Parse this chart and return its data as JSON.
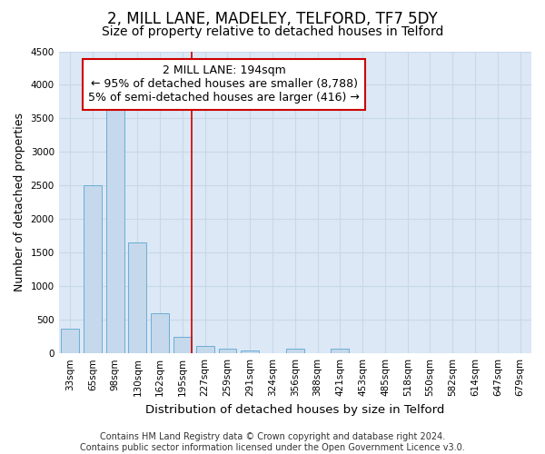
{
  "title": "2, MILL LANE, MADELEY, TELFORD, TF7 5DY",
  "subtitle": "Size of property relative to detached houses in Telford",
  "xlabel": "Distribution of detached houses by size in Telford",
  "ylabel": "Number of detached properties",
  "categories": [
    "33sqm",
    "65sqm",
    "98sqm",
    "130sqm",
    "162sqm",
    "195sqm",
    "227sqm",
    "259sqm",
    "291sqm",
    "324sqm",
    "356sqm",
    "388sqm",
    "421sqm",
    "453sqm",
    "485sqm",
    "518sqm",
    "550sqm",
    "582sqm",
    "614sqm",
    "647sqm",
    "679sqm"
  ],
  "values": [
    370,
    2500,
    3750,
    1650,
    600,
    240,
    110,
    65,
    45,
    0,
    65,
    0,
    65,
    0,
    0,
    0,
    0,
    0,
    0,
    0,
    0
  ],
  "bar_color": "#c5d8ec",
  "bar_edge_color": "#6aaed6",
  "ylim": [
    0,
    4500
  ],
  "yticks": [
    0,
    500,
    1000,
    1500,
    2000,
    2500,
    3000,
    3500,
    4000,
    4500
  ],
  "annotation_line1": "2 MILL LANE: 194sqm",
  "annotation_line2": "← 95% of detached houses are smaller (8,788)",
  "annotation_line3": "5% of semi-detached houses are larger (416) →",
  "annotation_box_color": "#ffffff",
  "annotation_box_edge": "#cc0000",
  "vline_color": "#cc0000",
  "vline_x": 5,
  "grid_color": "#c8d8e8",
  "background_color": "#dce8f5",
  "footer_text": "Contains HM Land Registry data © Crown copyright and database right 2024.\nContains public sector information licensed under the Open Government Licence v3.0.",
  "title_fontsize": 12,
  "subtitle_fontsize": 10,
  "xlabel_fontsize": 9.5,
  "ylabel_fontsize": 9,
  "tick_fontsize": 7.5,
  "annotation_fontsize": 9,
  "footer_fontsize": 7
}
